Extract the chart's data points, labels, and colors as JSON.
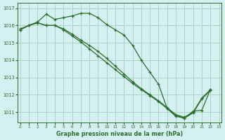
{
  "title": "Graphe pression niveau de la mer (hPa)",
  "bg_color": "#d4f0f0",
  "grid_color": "#aad4c8",
  "line_color": "#2d6e2d",
  "line1": {
    "x": [
      0,
      1,
      2,
      3,
      4,
      5,
      6,
      7,
      8,
      9,
      10,
      11,
      12,
      13,
      14,
      15,
      16,
      17,
      18,
      19,
      20,
      21,
      22
    ],
    "y": [
      1015.8,
      1016.0,
      1016.2,
      1016.65,
      1016.35,
      1016.45,
      1016.55,
      1016.7,
      1016.7,
      1016.45,
      1016.05,
      1015.75,
      1015.45,
      1014.85,
      1014.0,
      1013.3,
      1012.6,
      1011.2,
      1010.75,
      1010.65,
      1011.05,
      1011.1,
      1012.3
    ]
  },
  "line2": {
    "x": [
      0,
      1,
      2,
      3,
      4,
      5,
      6,
      7,
      8,
      9,
      10,
      11,
      12,
      13,
      14,
      15,
      16,
      17,
      18,
      19,
      20,
      21,
      22
    ],
    "y": [
      1015.75,
      1016.0,
      1016.15,
      1016.0,
      1016.0,
      1015.8,
      1015.5,
      1015.15,
      1014.85,
      1014.5,
      1014.1,
      1013.65,
      1013.2,
      1012.75,
      1012.35,
      1012.0,
      1011.65,
      1011.25,
      1010.85,
      1010.7,
      1011.0,
      1011.8,
      1012.3
    ]
  },
  "line3": {
    "x": [
      0,
      1,
      2,
      3,
      4,
      5,
      6,
      7,
      8,
      9,
      10,
      11,
      12,
      13,
      14,
      15,
      16,
      17,
      18,
      19,
      20,
      21,
      22
    ],
    "y": [
      1015.75,
      1016.0,
      1016.15,
      1016.0,
      1016.0,
      1015.75,
      1015.4,
      1015.05,
      1014.65,
      1014.25,
      1013.85,
      1013.45,
      1013.05,
      1012.65,
      1012.3,
      1011.95,
      1011.6,
      1011.2,
      1010.8,
      1010.65,
      1010.95,
      1011.75,
      1012.25
    ]
  },
  "ylim": [
    1010.4,
    1017.3
  ],
  "yticks": [
    1011,
    1012,
    1013,
    1014,
    1015,
    1016,
    1017
  ],
  "xticks": [
    0,
    1,
    2,
    3,
    4,
    5,
    6,
    7,
    8,
    9,
    10,
    11,
    12,
    13,
    14,
    15,
    16,
    17,
    18,
    19,
    20,
    21,
    22,
    23
  ],
  "xlim": [
    -0.3,
    23.3
  ]
}
